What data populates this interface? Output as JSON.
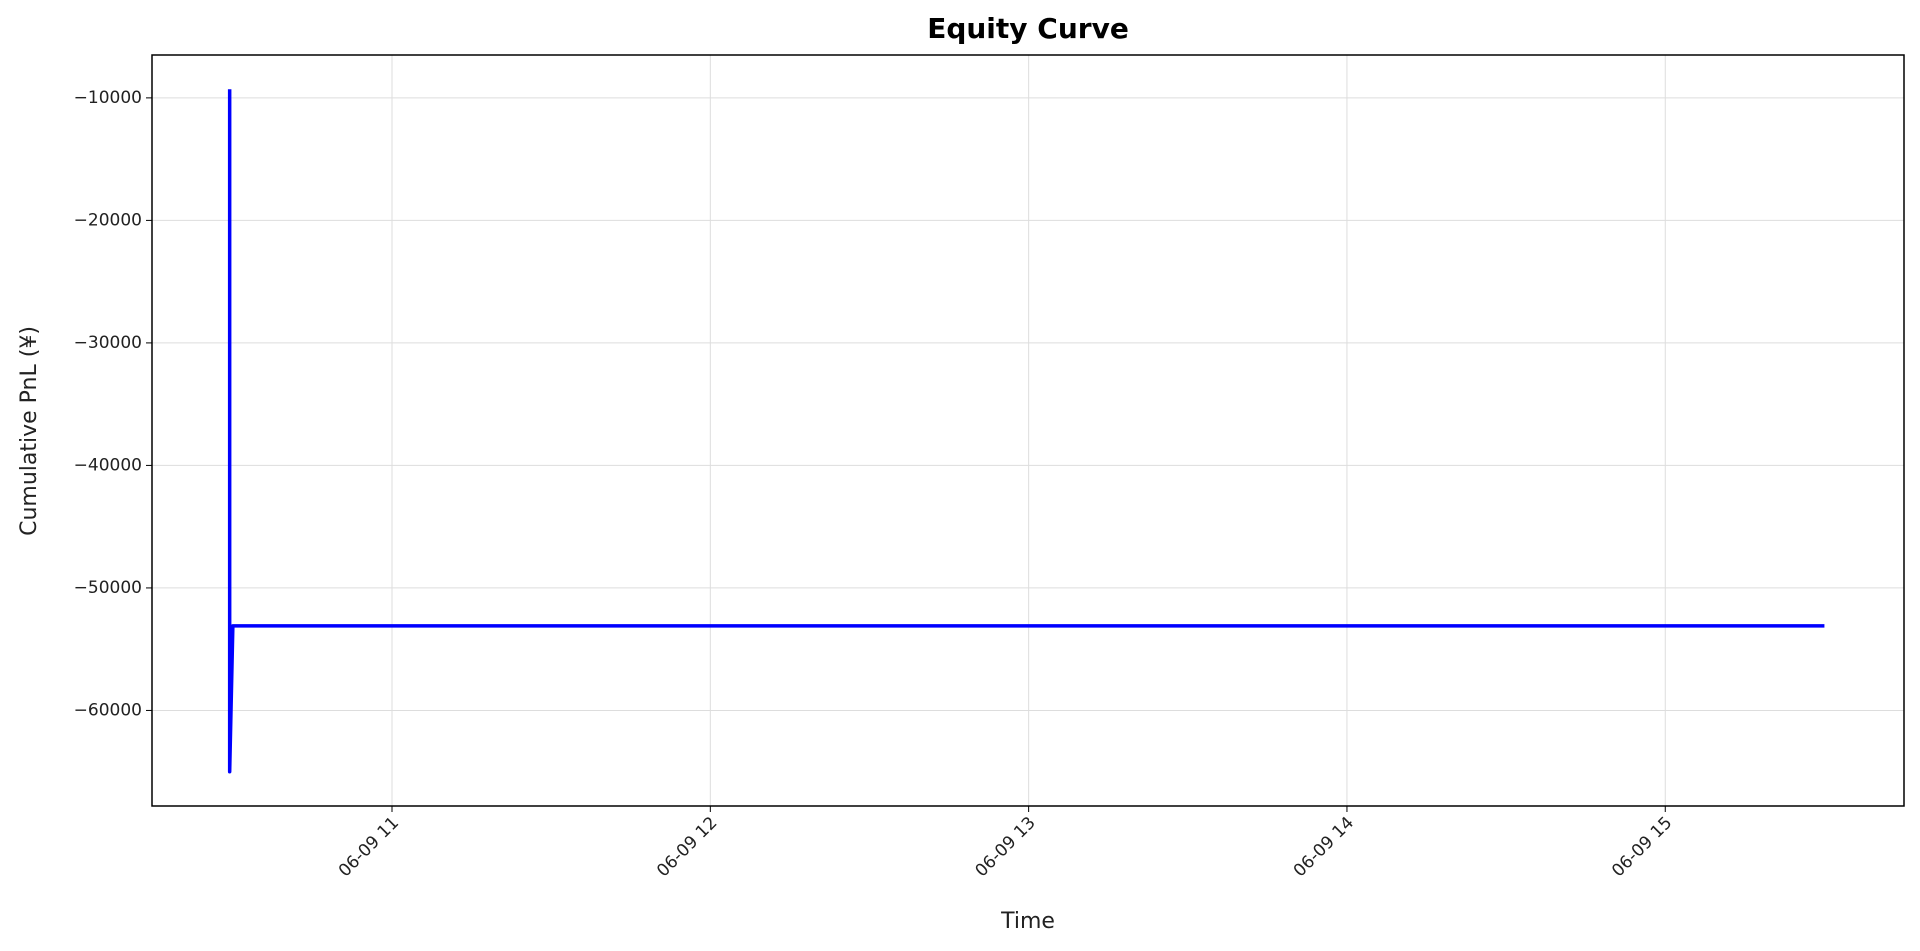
{
  "chart_data": {
    "type": "line",
    "title": "Equity Curve",
    "x_label": "Time",
    "y_label": "Cumulative PnL (¥)",
    "x": [
      10.49,
      10.49,
      10.5,
      15.5
    ],
    "series": [
      {
        "name": "Cumulative PnL",
        "color": "#0000ff",
        "values": [
          -9300,
          -65000,
          -53100,
          -53100
        ]
      }
    ],
    "xlim": [
      10.246,
      15.75
    ],
    "xticks": [
      {
        "value": 11,
        "label": "06-09 11"
      },
      {
        "value": 12,
        "label": "06-09 12"
      },
      {
        "value": 13,
        "label": "06-09 13"
      },
      {
        "value": 14,
        "label": "06-09 14"
      },
      {
        "value": 15,
        "label": "06-09 15"
      }
    ],
    "ylim": [
      -67800,
      -6500
    ],
    "yticks": [
      {
        "value": -60000,
        "label": "−60000"
      },
      {
        "value": -50000,
        "label": "−50000"
      },
      {
        "value": -40000,
        "label": "−40000"
      },
      {
        "value": -30000,
        "label": "−30000"
      },
      {
        "value": -20000,
        "label": "−20000"
      },
      {
        "value": -10000,
        "label": "−10000"
      }
    ],
    "grid": true
  }
}
